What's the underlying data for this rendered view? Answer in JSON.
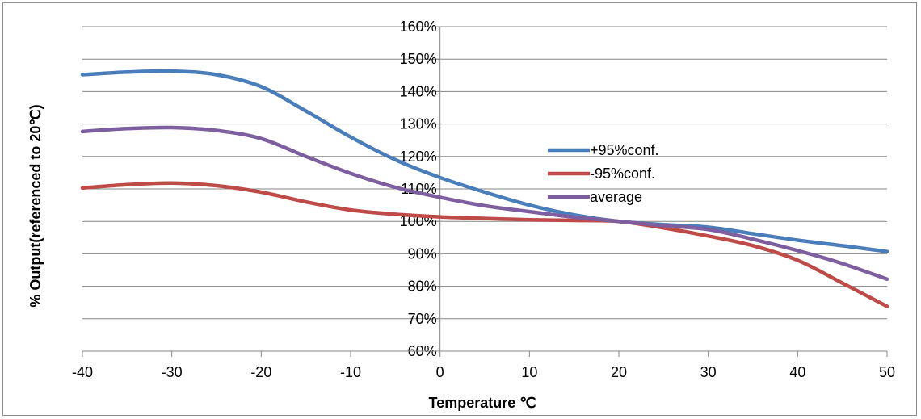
{
  "chart_data": {
    "type": "line",
    "title": "",
    "xlabel": "Temperature ℃",
    "ylabel": "% Output(referenced to 20℃)",
    "xlim": [
      -40,
      50
    ],
    "ylim": [
      60,
      160
    ],
    "x_ticks": [
      -40,
      -30,
      -20,
      -10,
      0,
      10,
      20,
      30,
      40,
      50
    ],
    "x_tick_labels": [
      "-40",
      "-30",
      "-20",
      "-10",
      "0",
      "10",
      "20",
      "30",
      "40",
      "50"
    ],
    "y_ticks": [
      60,
      70,
      80,
      90,
      100,
      110,
      120,
      130,
      140,
      150,
      160
    ],
    "y_tick_labels": [
      "60%",
      "70%",
      "80%",
      "90%",
      "100%",
      "110%",
      "120%",
      "130%",
      "140%",
      "150%",
      "160%"
    ],
    "grid": true,
    "legend_position": "center-right",
    "x": [
      -40,
      -35,
      -30,
      -25,
      -20,
      -15,
      -10,
      -5,
      0,
      5,
      10,
      15,
      20,
      25,
      30,
      35,
      40,
      45,
      50
    ],
    "series": [
      {
        "name": "+95%conf.",
        "color": "#4a7ebb",
        "values": [
          145.2,
          146.0,
          146.3,
          145.2,
          141.5,
          134.0,
          126.0,
          119.0,
          113.5,
          109.0,
          105.0,
          102.0,
          100.0,
          99.0,
          98.2,
          96.2,
          94.2,
          92.5,
          90.7
        ]
      },
      {
        "name": "-95%conf.",
        "color": "#be4b48",
        "values": [
          110.3,
          111.3,
          111.8,
          111.0,
          109.0,
          106.0,
          103.5,
          102.2,
          101.4,
          100.9,
          100.5,
          100.3,
          100.0,
          98.0,
          95.5,
          92.5,
          88.0,
          81.0,
          73.8
        ]
      },
      {
        "name": "average",
        "color": "#7d5fa0",
        "values": [
          127.7,
          128.6,
          128.9,
          128.0,
          125.5,
          120.0,
          114.8,
          110.5,
          107.4,
          104.8,
          103.0,
          101.3,
          100.0,
          98.7,
          97.5,
          94.5,
          91.0,
          87.0,
          82.2
        ]
      }
    ]
  }
}
